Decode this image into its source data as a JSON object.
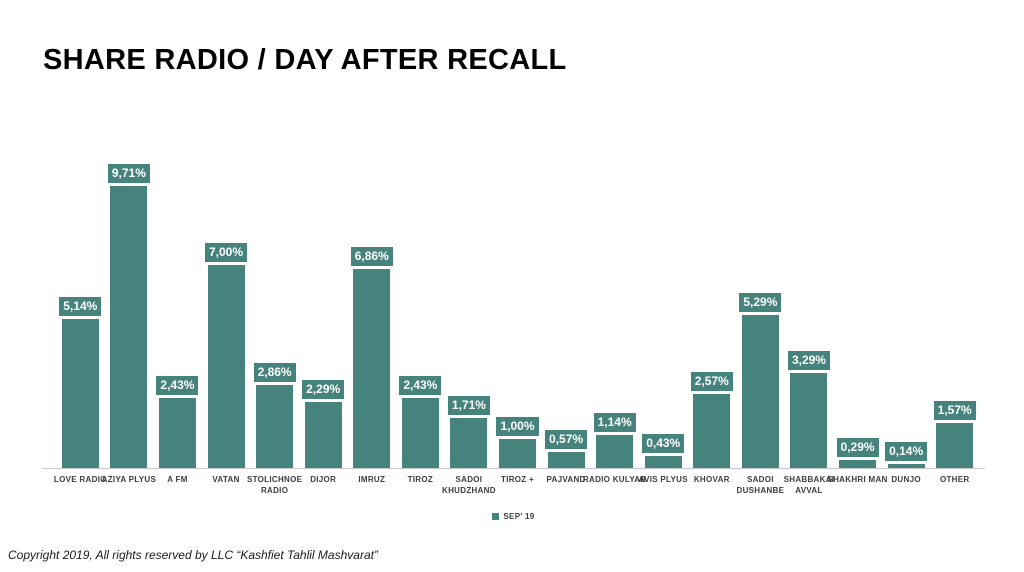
{
  "page": {
    "title": "SHARE RADIO / DAY AFTER RECALL",
    "copyright": "Copyright 2019, All rights reserved by LLC “Kashfiet Tahlil Mashvarat”"
  },
  "legend": {
    "label": "SEP' 19"
  },
  "colors": {
    "bar": "#47837D",
    "axis_line": "#C9C9C9",
    "value_label_text": "#FFFFFF",
    "category_text": "#3D3D3D",
    "title_text": "#000000"
  },
  "chart_data": {
    "type": "bar",
    "title": "SHARE RADIO / DAY AFTER RECALL",
    "xlabel": "",
    "ylabel": "",
    "ylim": [
      0,
      10
    ],
    "grid": false,
    "legend_position": "bottom-center",
    "value_label_style": "teal box above bar, white bold text, comma decimal separator",
    "categories": [
      "LOVE RADIO",
      "AZIYA PLYUS",
      "A FM",
      "VATAN",
      "STOLICHNOE\nRADIO",
      "DIJOR",
      "IMRUZ",
      "TIROZ",
      "SADOI\nKHUDZHAND",
      "TIROZ +",
      "PAJVAND",
      "RADIO KULYAB",
      "AVIS PLYUS",
      "KHOVAR",
      "SADOI\nDUSHANBE",
      "SHABBAKAI\nAVVAL",
      "SHAKHRI MAN",
      "DUNJO",
      "OTHER"
    ],
    "series": [
      {
        "name": "SEP' 19",
        "values": [
          5.14,
          9.71,
          2.43,
          7.0,
          2.86,
          2.29,
          6.86,
          2.43,
          1.71,
          1.0,
          0.57,
          1.14,
          0.43,
          2.57,
          5.29,
          3.29,
          0.29,
          0.14,
          1.57
        ],
        "value_labels": [
          "5,14%",
          "9,71%",
          "2,43%",
          "7,00%",
          "2,86%",
          "2,29%",
          "6,86%",
          "2,43%",
          "1,71%",
          "1,00%",
          "0,57%",
          "1,14%",
          "0,43%",
          "2,57%",
          "5,29%",
          "3,29%",
          "0,29%",
          "0,14%",
          "1,57%"
        ]
      }
    ]
  }
}
